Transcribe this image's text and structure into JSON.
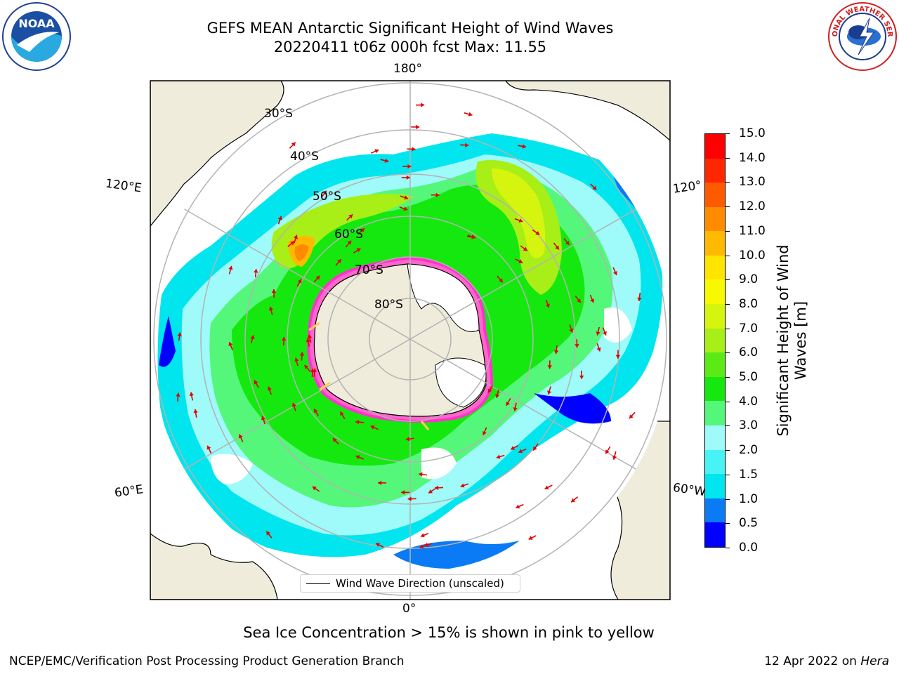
{
  "title": "GEFS MEAN Antarctic Significant Height of Wind Waves",
  "subtitle_line": "20220411 t06z 000h fcst   Max: 11.55",
  "map": {
    "lon_labels": {
      "top": "180°",
      "bottom": "0°",
      "left_upper": "120°E",
      "left_lower": "60°E",
      "right_upper": "120°",
      "right_lower": "60°W"
    },
    "lat_labels": [
      "30°S",
      "40°S",
      "50°S",
      "60°S",
      "70°S",
      "80°S"
    ],
    "legend_label": "Wind Wave Direction (unscaled)"
  },
  "colorbar": {
    "label": "Significant Height of Wind Waves [m]",
    "ticks": [
      "0.0",
      "0.5",
      "1.0",
      "1.5",
      "2.0",
      "3.0",
      "4.0",
      "5.0",
      "6.0",
      "7.0",
      "8.0",
      "9.0",
      "10.0",
      "11.0",
      "12.0",
      "13.0",
      "14.0",
      "15.0"
    ],
    "colors": [
      "#0000ff",
      "#0a7af5",
      "#00e5ee",
      "#48f3f6",
      "#9ffafa",
      "#55f77a",
      "#15e80f",
      "#5bea16",
      "#a7ef16",
      "#d6f50e",
      "#f8f800",
      "#ffe400",
      "#ffb900",
      "#ff8c00",
      "#ff5a00",
      "#ff2600",
      "#ff0000"
    ]
  },
  "note": "Sea Ice Concentration > 15% is shown in pink to yellow",
  "footer": {
    "left": "NCEP/EMC/Verification Post Processing Product Generation Branch",
    "date": "12 Apr 2022 on ",
    "machine": "Hera"
  },
  "logos": {
    "noaa_text": "NOAA",
    "nws_text": "NATIONAL WEATHER SERVICE"
  }
}
